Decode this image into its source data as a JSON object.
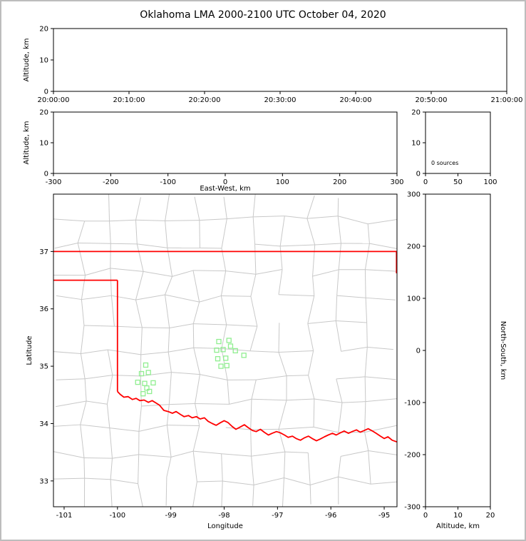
{
  "title": "Oklahoma LMA 2000-2100 UTC October 04, 2020",
  "colors": {
    "background": "#ffffff",
    "frame": "#bdbdbd",
    "axis": "#000000",
    "county_lines": "#c8c8c8",
    "state_border": "#ff0000",
    "source_marker": "#90ee90"
  },
  "panels": {
    "time_height": {
      "ylabel": "Altitude, km",
      "yticks": [
        "20",
        "10",
        "0"
      ],
      "ytick_values": [
        20,
        10,
        0
      ],
      "xticks": [
        "20:00:00",
        "20:10:00",
        "20:20:00",
        "20:30:00",
        "20:40:00",
        "20:50:00",
        "21:00:00"
      ],
      "ylim": [
        0,
        20
      ]
    },
    "ew_height": {
      "ylabel": "Altitude, km",
      "xlabel": "East-West, km",
      "xticks": [
        "-300",
        "-200",
        "-100",
        "0",
        "100",
        "200",
        "300"
      ],
      "xtick_values": [
        -300,
        -200,
        -100,
        0,
        100,
        200,
        300
      ],
      "yticks": [
        "20",
        "10",
        "0"
      ],
      "ytick_values": [
        20,
        10,
        0
      ],
      "xlim": [
        -300,
        300
      ],
      "ylim": [
        0,
        20
      ]
    },
    "histogram": {
      "annotation": "0 sources",
      "xticks": [
        "0",
        "50",
        "100"
      ],
      "xtick_values": [
        0,
        50,
        100
      ],
      "yticks": [
        "20",
        "10",
        "0"
      ],
      "ytick_values": [
        20,
        10,
        0
      ],
      "xlim": [
        0,
        100
      ],
      "ylim": [
        0,
        20
      ]
    },
    "map": {
      "xlabel": "Longitude",
      "ylabel": "Latitude",
      "xticks": [
        "-101",
        "-100",
        "-99",
        "-98",
        "-97",
        "-96",
        "-95"
      ],
      "xtick_values": [
        -101,
        -100,
        -99,
        -98,
        -97,
        -96,
        -95
      ],
      "yticks": [
        "37",
        "36",
        "35",
        "34",
        "33"
      ],
      "ytick_values": [
        37,
        36,
        35,
        34,
        33
      ],
      "xlim": [
        -101.2,
        -94.76
      ],
      "ylim": [
        32.55,
        38.0
      ]
    },
    "ns_height": {
      "xlabel": "Altitude, km",
      "ylabel": "North-South, km",
      "xticks": [
        "0",
        "10",
        "20"
      ],
      "xtick_values": [
        0,
        10,
        20
      ],
      "yticks": [
        "300",
        "200",
        "100",
        "0",
        "-100",
        "-200",
        "-300"
      ],
      "ytick_values": [
        300,
        200,
        100,
        0,
        -100,
        -200,
        -300
      ],
      "xlim": [
        0,
        20
      ],
      "ylim": [
        -300,
        300
      ]
    }
  },
  "chart_data": [
    {
      "type": "scatter",
      "name": "altitude_vs_time",
      "ylabel": "Altitude, km",
      "ylim": [
        0,
        20
      ],
      "x_tick_labels": [
        "20:00:00",
        "20:10:00",
        "20:20:00",
        "20:30:00",
        "20:40:00",
        "20:50:00",
        "21:00:00"
      ],
      "series": [
        {
          "name": "lma-sources",
          "x": [],
          "y": []
        }
      ]
    },
    {
      "type": "scatter",
      "name": "altitude_vs_east_west",
      "xlabel": "East-West, km",
      "ylabel": "Altitude, km",
      "xlim": [
        -300,
        300
      ],
      "ylim": [
        0,
        20
      ],
      "series": [
        {
          "name": "lma-sources",
          "x": [],
          "y": []
        }
      ]
    },
    {
      "type": "histogram",
      "name": "sources_by_altitude",
      "annotation": "0 sources",
      "xlim": [
        0,
        100
      ],
      "ylim": [
        0,
        20
      ],
      "values": []
    },
    {
      "type": "scatter",
      "name": "plan_view_map",
      "xlabel": "Longitude",
      "ylabel": "Latitude",
      "xlim": [
        -101.2,
        -94.76
      ],
      "ylim": [
        32.55,
        38.0
      ],
      "marker": "open-square",
      "points_lon_lat": [
        [
          -99.47,
          35.02
        ],
        [
          -99.55,
          34.87
        ],
        [
          -99.42,
          34.89
        ],
        [
          -99.62,
          34.72
        ],
        [
          -99.49,
          34.7
        ],
        [
          -99.33,
          34.71
        ],
        [
          -99.45,
          34.62
        ],
        [
          -99.4,
          34.56
        ],
        [
          -99.52,
          34.52
        ],
        [
          -98.1,
          35.43
        ],
        [
          -97.91,
          35.45
        ],
        [
          -98.14,
          35.28
        ],
        [
          -98.02,
          35.29
        ],
        [
          -97.79,
          35.27
        ],
        [
          -97.88,
          35.35
        ],
        [
          -98.12,
          35.13
        ],
        [
          -97.97,
          35.14
        ],
        [
          -97.63,
          35.19
        ],
        [
          -97.95,
          35.01
        ],
        [
          -98.06,
          35.0
        ]
      ],
      "state_border_segments": {
        "north": [
          [
            -101.2,
            37.0
          ],
          [
            -94.76,
            37.0
          ]
        ],
        "panhandle_south": [
          [
            -101.2,
            36.5
          ],
          [
            -100.0,
            36.5
          ]
        ],
        "west": [
          [
            -100.0,
            36.5
          ],
          [
            -100.0,
            34.56
          ]
        ],
        "east_edge": [
          [
            -94.77,
            37.0
          ],
          [
            -94.77,
            36.62
          ]
        ],
        "red_river": [
          [
            -100.0,
            34.56
          ],
          [
            -99.95,
            34.51
          ],
          [
            -99.88,
            34.46
          ],
          [
            -99.8,
            34.47
          ],
          [
            -99.72,
            34.42
          ],
          [
            -99.65,
            34.44
          ],
          [
            -99.58,
            34.4
          ],
          [
            -99.5,
            34.41
          ],
          [
            -99.42,
            34.37
          ],
          [
            -99.35,
            34.4
          ],
          [
            -99.28,
            34.36
          ],
          [
            -99.21,
            34.32
          ],
          [
            -99.13,
            34.23
          ],
          [
            -99.05,
            34.21
          ],
          [
            -98.97,
            34.18
          ],
          [
            -98.9,
            34.21
          ],
          [
            -98.82,
            34.16
          ],
          [
            -98.75,
            34.12
          ],
          [
            -98.67,
            34.14
          ],
          [
            -98.6,
            34.1
          ],
          [
            -98.52,
            34.12
          ],
          [
            -98.45,
            34.08
          ],
          [
            -98.37,
            34.1
          ],
          [
            -98.3,
            34.04
          ],
          [
            -98.22,
            34.0
          ],
          [
            -98.15,
            33.97
          ],
          [
            -98.08,
            34.01
          ],
          [
            -98.0,
            34.05
          ],
          [
            -97.93,
            34.02
          ],
          [
            -97.85,
            33.95
          ],
          [
            -97.78,
            33.9
          ],
          [
            -97.7,
            33.94
          ],
          [
            -97.62,
            33.98
          ],
          [
            -97.55,
            33.93
          ],
          [
            -97.47,
            33.88
          ],
          [
            -97.4,
            33.86
          ],
          [
            -97.32,
            33.9
          ],
          [
            -97.25,
            33.85
          ],
          [
            -97.17,
            33.8
          ],
          [
            -97.1,
            33.83
          ],
          [
            -97.02,
            33.86
          ],
          [
            -96.95,
            33.84
          ],
          [
            -96.87,
            33.8
          ],
          [
            -96.8,
            33.76
          ],
          [
            -96.72,
            33.78
          ],
          [
            -96.65,
            33.74
          ],
          [
            -96.57,
            33.71
          ],
          [
            -96.5,
            33.75
          ],
          [
            -96.42,
            33.78
          ],
          [
            -96.35,
            33.74
          ],
          [
            -96.27,
            33.7
          ],
          [
            -96.2,
            33.73
          ],
          [
            -96.12,
            33.77
          ],
          [
            -96.05,
            33.8
          ],
          [
            -95.97,
            33.83
          ],
          [
            -95.9,
            33.8
          ],
          [
            -95.82,
            33.84
          ],
          [
            -95.75,
            33.87
          ],
          [
            -95.67,
            33.83
          ],
          [
            -95.6,
            33.86
          ],
          [
            -95.52,
            33.89
          ],
          [
            -95.45,
            33.85
          ],
          [
            -95.37,
            33.88
          ],
          [
            -95.3,
            33.91
          ],
          [
            -95.22,
            33.87
          ],
          [
            -95.15,
            33.83
          ],
          [
            -95.07,
            33.78
          ],
          [
            -95.0,
            33.74
          ],
          [
            -94.93,
            33.77
          ],
          [
            -94.85,
            33.71
          ],
          [
            -94.76,
            33.68
          ]
        ]
      }
    },
    {
      "type": "scatter",
      "name": "altitude_vs_north_south",
      "xlabel": "Altitude, km",
      "ylabel": "North-South, km",
      "xlim": [
        0,
        20
      ],
      "ylim": [
        -300,
        300
      ],
      "series": [
        {
          "name": "lma-sources",
          "x": [],
          "y": []
        }
      ]
    }
  ]
}
